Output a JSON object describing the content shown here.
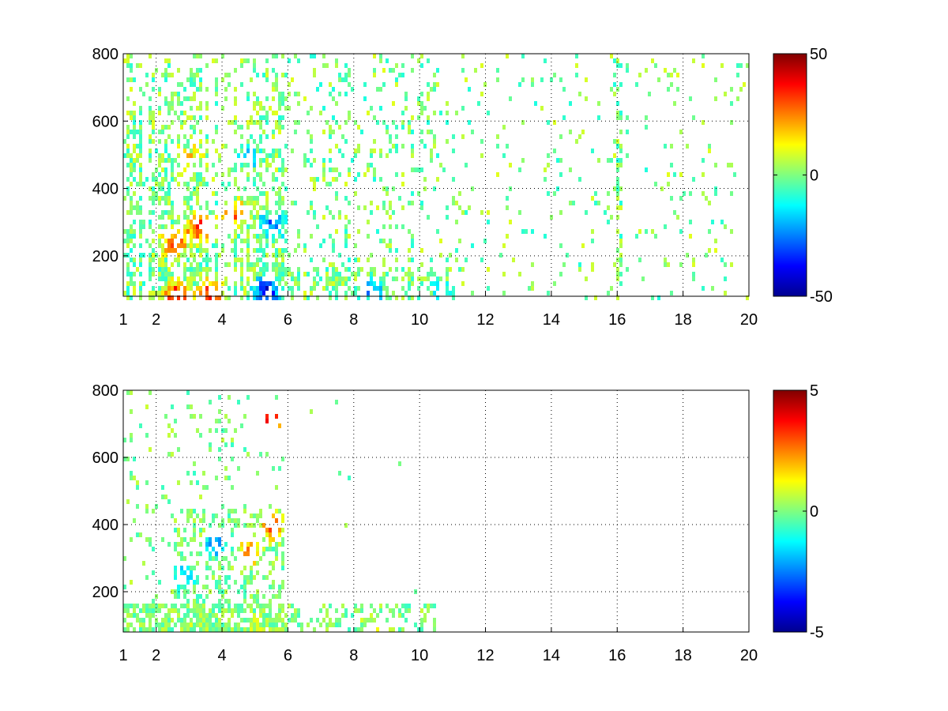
{
  "chart_data": [
    {
      "type": "heatmap",
      "x_ticks": [
        "1",
        "2",
        "4",
        "6",
        "8",
        "10",
        "12",
        "14",
        "16",
        "18",
        "20"
      ],
      "x_tick_values": [
        1,
        2,
        4,
        6,
        8,
        10,
        12,
        14,
        16,
        18,
        20
      ],
      "y_ticks": [
        "200",
        "400",
        "600",
        "800"
      ],
      "y_tick_values": [
        200,
        400,
        600,
        800
      ],
      "xlim": [
        1,
        20
      ],
      "ylim": [
        80,
        800
      ],
      "clim": [
        -50,
        50
      ],
      "colorbar_ticks": [
        "50",
        "0",
        "-50"
      ],
      "colorbar_tick_values": [
        50,
        0,
        -50
      ],
      "colormap": "jet",
      "grid": true,
      "features": [
        {
          "x": 2.6,
          "y": 90,
          "value": 45
        },
        {
          "x": 3.6,
          "y": 95,
          "value": 40
        },
        {
          "x": 5.3,
          "y": 100,
          "value": -45
        },
        {
          "x": 2.5,
          "y": 250,
          "value": 35
        },
        {
          "x": 3.3,
          "y": 290,
          "value": 40
        },
        {
          "x": 4.3,
          "y": 330,
          "value": 30
        },
        {
          "x": 5.5,
          "y": 300,
          "value": -30
        },
        {
          "x": 3.0,
          "y": 500,
          "value": 15
        },
        {
          "x": 4.7,
          "y": 500,
          "value": -18
        },
        {
          "x": 8.5,
          "y": 100,
          "value": -25
        },
        {
          "x": 10.5,
          "y": 100,
          "value": -10
        }
      ]
    },
    {
      "type": "heatmap",
      "x_ticks": [
        "1",
        "2",
        "4",
        "6",
        "8",
        "10",
        "12",
        "14",
        "16",
        "18",
        "20"
      ],
      "x_tick_values": [
        1,
        2,
        4,
        6,
        8,
        10,
        12,
        14,
        16,
        18,
        20
      ],
      "y_ticks": [
        "200",
        "400",
        "600",
        "800"
      ],
      "y_tick_values": [
        200,
        400,
        600,
        800
      ],
      "xlim": [
        1,
        20
      ],
      "ylim": [
        80,
        800
      ],
      "clim": [
        -5,
        5
      ],
      "colorbar_ticks": [
        "5",
        "0",
        "-5"
      ],
      "colorbar_tick_values": [
        5,
        0,
        -5
      ],
      "colormap": "jet",
      "grid": true,
      "features": [
        {
          "x": 3.2,
          "y": 100,
          "value": 0.5
        },
        {
          "x": 5.0,
          "y": 100,
          "value": 0.5
        },
        {
          "x": 2.8,
          "y": 250,
          "value": -2.5
        },
        {
          "x": 3.8,
          "y": 350,
          "value": -3
        },
        {
          "x": 4.8,
          "y": 320,
          "value": 3
        },
        {
          "x": 5.5,
          "y": 400,
          "value": 3.5
        },
        {
          "x": 5.5,
          "y": 720,
          "value": 5
        },
        {
          "x": 8.5,
          "y": 100,
          "value": 0.8
        }
      ]
    }
  ]
}
